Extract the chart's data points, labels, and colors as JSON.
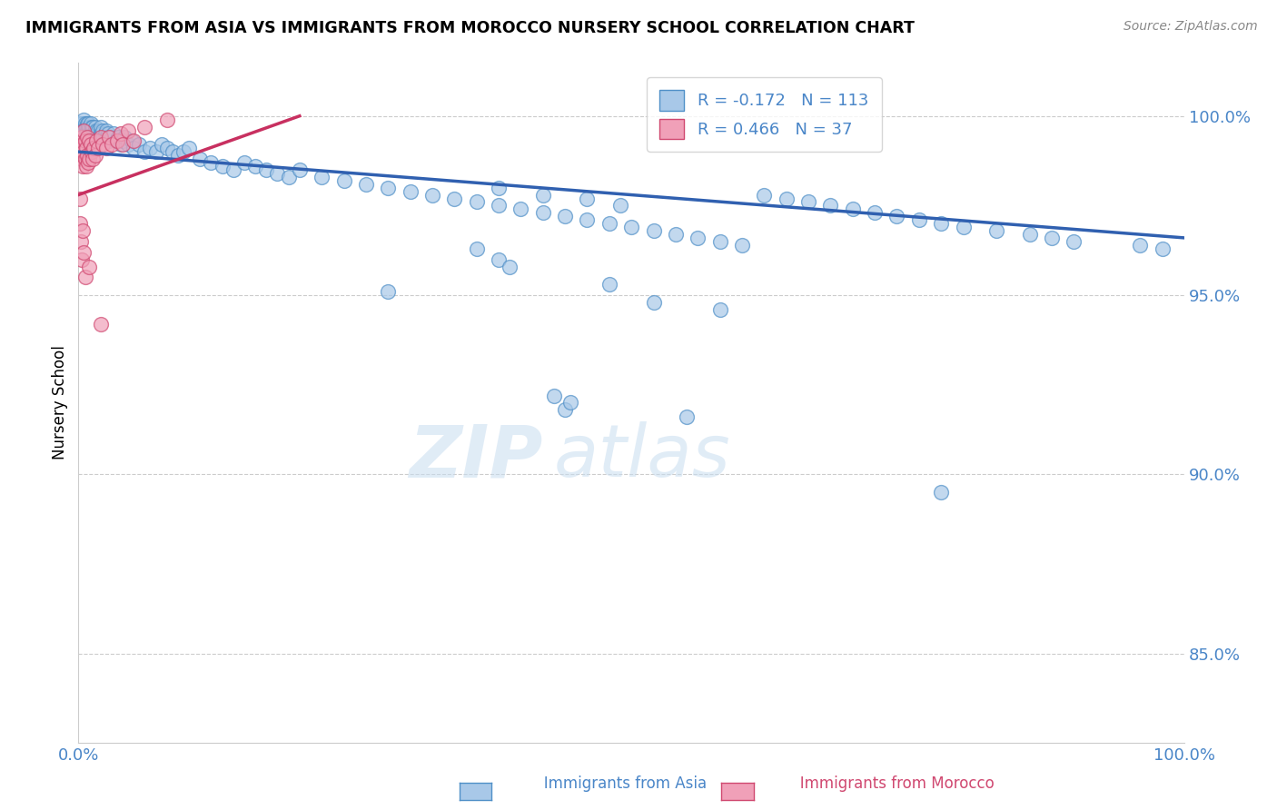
{
  "title": "IMMIGRANTS FROM ASIA VS IMMIGRANTS FROM MOROCCO NURSERY SCHOOL CORRELATION CHART",
  "source_text": "Source: ZipAtlas.com",
  "ylabel": "Nursery School",
  "legend_r_asia": "-0.172",
  "legend_n_asia": "113",
  "legend_r_morocco": "0.466",
  "legend_n_morocco": "37",
  "color_asia_fill": "#a8c8e8",
  "color_asia_edge": "#5090c8",
  "color_morocco_fill": "#f0a0b8",
  "color_morocco_edge": "#d04870",
  "color_asia_line": "#3060b0",
  "color_morocco_line": "#c83060",
  "color_axis_text": "#4a86c8",
  "color_grid": "#cccccc",
  "watermark_color": "#c8ddf0",
  "ytick_values": [
    0.85,
    0.9,
    0.95,
    1.0
  ],
  "xlim": [
    0.0,
    1.0
  ],
  "ylim": [
    0.825,
    1.015
  ],
  "asia_x": [
    0.002,
    0.003,
    0.004,
    0.005,
    0.005,
    0.006,
    0.006,
    0.007,
    0.007,
    0.008,
    0.008,
    0.009,
    0.009,
    0.01,
    0.01,
    0.011,
    0.011,
    0.012,
    0.012,
    0.013,
    0.013,
    0.014,
    0.015,
    0.015,
    0.016,
    0.016,
    0.017,
    0.018,
    0.018,
    0.019,
    0.02,
    0.02,
    0.021,
    0.022,
    0.023,
    0.024,
    0.025,
    0.026,
    0.027,
    0.028,
    0.03,
    0.032,
    0.034,
    0.036,
    0.038,
    0.04,
    0.042,
    0.045,
    0.048,
    0.05,
    0.055,
    0.06,
    0.065,
    0.07,
    0.075,
    0.08,
    0.085,
    0.09,
    0.095,
    0.1,
    0.11,
    0.12,
    0.13,
    0.14,
    0.15,
    0.16,
    0.17,
    0.18,
    0.19,
    0.2,
    0.22,
    0.24,
    0.26,
    0.28,
    0.3,
    0.32,
    0.34,
    0.36,
    0.38,
    0.4,
    0.42,
    0.44,
    0.46,
    0.48,
    0.5,
    0.52,
    0.54,
    0.56,
    0.58,
    0.6,
    0.38,
    0.42,
    0.46,
    0.49,
    0.36,
    0.38,
    0.39,
    0.62,
    0.64,
    0.66,
    0.68,
    0.7,
    0.72,
    0.74,
    0.76,
    0.78,
    0.8,
    0.83,
    0.86,
    0.88,
    0.9,
    0.96,
    0.98
  ],
  "asia_y": [
    0.998,
    0.997,
    0.998,
    0.996,
    0.999,
    0.997,
    0.998,
    0.996,
    0.997,
    0.998,
    0.996,
    0.997,
    0.998,
    0.996,
    0.997,
    0.998,
    0.996,
    0.997,
    0.995,
    0.996,
    0.997,
    0.995,
    0.996,
    0.997,
    0.995,
    0.996,
    0.994,
    0.995,
    0.996,
    0.994,
    0.996,
    0.997,
    0.995,
    0.996,
    0.994,
    0.995,
    0.996,
    0.994,
    0.995,
    0.993,
    0.994,
    0.995,
    0.993,
    0.994,
    0.992,
    0.993,
    0.994,
    0.992,
    0.993,
    0.991,
    0.992,
    0.99,
    0.991,
    0.99,
    0.992,
    0.991,
    0.99,
    0.989,
    0.99,
    0.991,
    0.988,
    0.987,
    0.986,
    0.985,
    0.987,
    0.986,
    0.985,
    0.984,
    0.983,
    0.985,
    0.983,
    0.982,
    0.981,
    0.98,
    0.979,
    0.978,
    0.977,
    0.976,
    0.975,
    0.974,
    0.973,
    0.972,
    0.971,
    0.97,
    0.969,
    0.968,
    0.967,
    0.966,
    0.965,
    0.964,
    0.98,
    0.978,
    0.977,
    0.975,
    0.963,
    0.96,
    0.958,
    0.978,
    0.977,
    0.976,
    0.975,
    0.974,
    0.973,
    0.972,
    0.971,
    0.97,
    0.969,
    0.968,
    0.967,
    0.966,
    0.965,
    0.964,
    0.963
  ],
  "asia_x_outliers": [
    0.28,
    0.48,
    0.52,
    0.58,
    0.43,
    0.44,
    0.445,
    0.55,
    0.78
  ],
  "asia_y_outliers": [
    0.951,
    0.953,
    0.948,
    0.946,
    0.922,
    0.918,
    0.92,
    0.916,
    0.895
  ],
  "morocco_x": [
    0.001,
    0.002,
    0.002,
    0.003,
    0.003,
    0.004,
    0.004,
    0.005,
    0.005,
    0.006,
    0.006,
    0.007,
    0.007,
    0.008,
    0.008,
    0.009,
    0.01,
    0.01,
    0.011,
    0.012,
    0.013,
    0.014,
    0.015,
    0.016,
    0.018,
    0.02,
    0.022,
    0.025,
    0.028,
    0.03,
    0.035,
    0.038,
    0.04,
    0.045,
    0.05,
    0.06,
    0.08
  ],
  "morocco_y": [
    0.992,
    0.993,
    0.99,
    0.994,
    0.988,
    0.992,
    0.986,
    0.99,
    0.996,
    0.988,
    0.993,
    0.991,
    0.986,
    0.994,
    0.989,
    0.987,
    0.993,
    0.988,
    0.992,
    0.99,
    0.988,
    0.991,
    0.989,
    0.993,
    0.991,
    0.994,
    0.992,
    0.991,
    0.994,
    0.992,
    0.993,
    0.995,
    0.992,
    0.996,
    0.993,
    0.997,
    0.999
  ],
  "morocco_x_outliers": [
    0.001,
    0.001,
    0.002,
    0.003,
    0.004,
    0.005,
    0.006,
    0.01,
    0.02
  ],
  "morocco_y_outliers": [
    0.977,
    0.97,
    0.965,
    0.96,
    0.968,
    0.962,
    0.955,
    0.958,
    0.942
  ]
}
